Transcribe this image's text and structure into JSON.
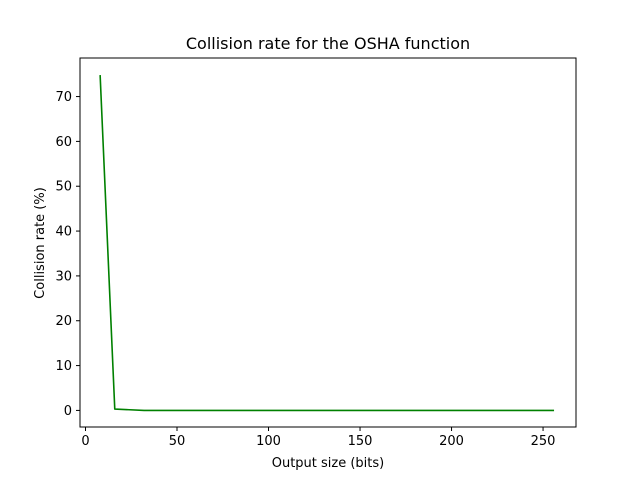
{
  "chart_data": {
    "type": "line",
    "title": "Collision rate for the OSHA function",
    "xlabel": "Output size (bits)",
    "ylabel": "Collision rate (%)",
    "xlim": [
      -3,
      268
    ],
    "ylim": [
      -3.7,
      78.6
    ],
    "xticks": [
      0,
      50,
      100,
      150,
      200,
      250
    ],
    "yticks": [
      0,
      10,
      20,
      30,
      40,
      50,
      60,
      70
    ],
    "grid": false,
    "series": [
      {
        "color": "#008000",
        "x": [
          8,
          16,
          32,
          64,
          128,
          256
        ],
        "y": [
          74.8,
          0.3,
          0.0,
          0.0,
          0.0,
          0.0
        ]
      }
    ]
  }
}
